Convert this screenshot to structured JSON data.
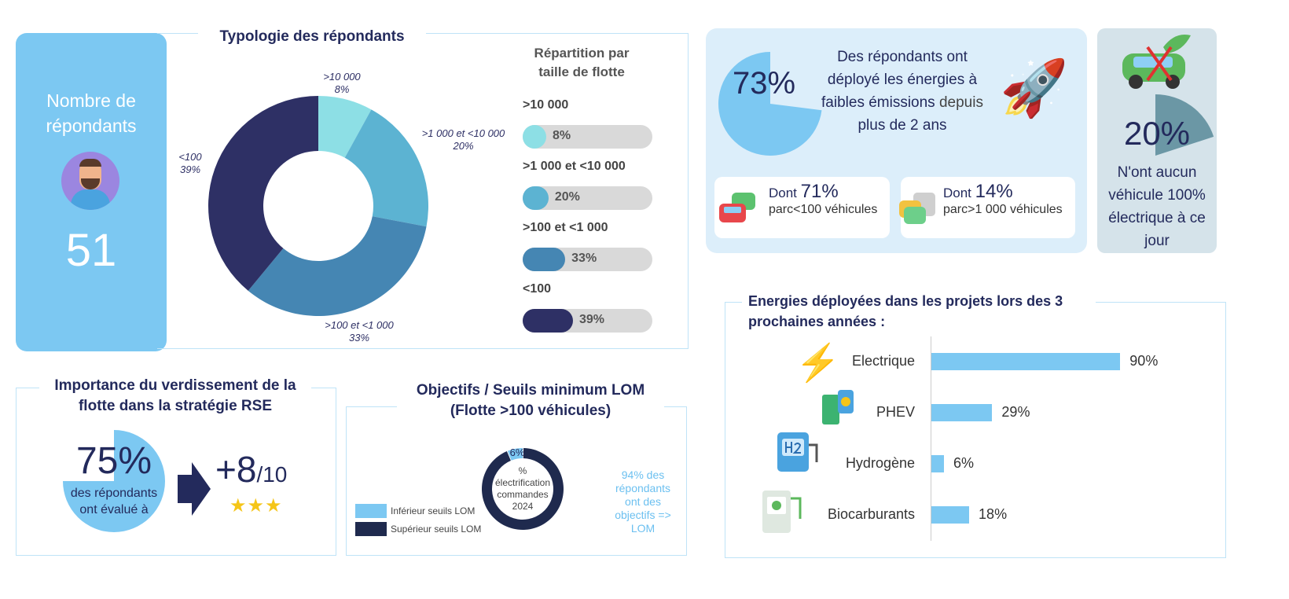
{
  "respondents": {
    "label": "Nombre de répondants",
    "count": "51"
  },
  "typology": {
    "title": "Typologie des répondants",
    "legend_title": "Répartition par taille de flotte"
  },
  "chart_data": [
    {
      "type": "pie",
      "title": "Typologie des répondants",
      "categories": [
        ">10 000",
        ">1 000 et <10 000",
        ">100 et <1 000",
        "<100"
      ],
      "values": [
        8,
        20,
        33,
        39
      ],
      "labels": [
        "8%",
        "20%",
        "33%",
        "39%"
      ],
      "colors": [
        "#8ddfe5",
        "#5cb3d2",
        "#4586b3",
        "#2e3065"
      ]
    },
    {
      "type": "pie",
      "title": "Objectifs / Seuils minimum LOM (Flotte >100 véhicules)",
      "center_label": "% électrification commandes 2024",
      "categories": [
        "Inférieur seuils LOM",
        "Supérieur seuils LOM"
      ],
      "values": [
        6,
        94
      ],
      "labels": [
        "6%",
        "94%"
      ],
      "colors": [
        "#7cc8f2",
        "#1f2a4e"
      ]
    },
    {
      "type": "bar",
      "title": "Energies déployées dans les projets lors des 3 prochaines années :",
      "categories": [
        "Electrique",
        "PHEV",
        "Hydrogène",
        "Biocarburants"
      ],
      "values": [
        90,
        29,
        6,
        18
      ],
      "labels": [
        "90%",
        "29%",
        "6%",
        "18%"
      ],
      "xlim": [
        0,
        100
      ]
    },
    {
      "type": "pie",
      "values": [
        73
      ],
      "label": "73%"
    },
    {
      "type": "pie",
      "values": [
        20
      ],
      "label": "20%"
    },
    {
      "type": "pie",
      "values": [
        75
      ],
      "label": "75%"
    }
  ],
  "deployed": {
    "pct": "73%",
    "text1": "Des répondants ont",
    "text2": "déployé les énergies à",
    "text3b": "faibles émissions",
    "text3": " depuis",
    "text4": "plus de 2 ans",
    "sub1_prefix": "Dont ",
    "sub1_pct": "71%",
    "sub1_text": "parc<100 véhicules",
    "sub2_prefix": "Dont ",
    "sub2_pct": "14%",
    "sub2_text": "parc>1 000 véhicules"
  },
  "noev": {
    "pct": "20%",
    "text": "N'ont aucun véhicule 100% électrique à ce jour"
  },
  "green": {
    "title": "Importance du verdissement de la flotte dans la stratégie RSE",
    "pct": "75%",
    "text": "des répondants ont évalué à",
    "score": "+8",
    "score_max": "/10"
  },
  "lom": {
    "note": "94% des répondants ont des objectifs => LOM"
  },
  "colors": {
    "accent": "#7cc8f2",
    "navy": "#232a5c"
  }
}
